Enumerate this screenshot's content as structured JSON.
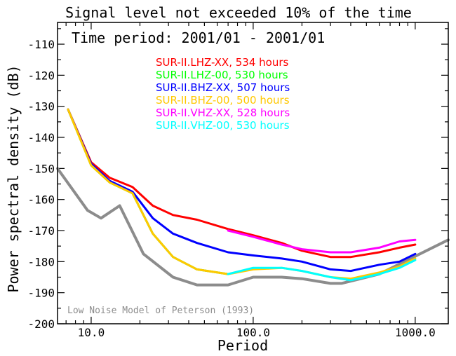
{
  "title": "Signal level not exceeded 10% of the time",
  "subtitle": "Time period: 2001/01 - 2001/01",
  "chart_data": {
    "type": "line",
    "xlabel": "Period",
    "ylabel": "Power spectral density (dB)",
    "xscale": "log",
    "xlim": [
      6.2,
      1600
    ],
    "ylim": [
      -200,
      -103
    ],
    "xticks": [
      10,
      100,
      1000
    ],
    "xtick_labels": [
      "10.0",
      "100.0",
      "1000.0"
    ],
    "yticks": [
      -200,
      -190,
      -180,
      -170,
      -160,
      -150,
      -140,
      -130,
      -120,
      -110
    ],
    "ytick_labels": [
      "-200",
      "-190",
      "-180",
      "-170",
      "-160",
      "-150",
      "-140",
      "-130",
      "-120",
      "-110"
    ],
    "grid": false,
    "legend_position": "top-center",
    "series": [
      {
        "name": "SUR-II.LHZ-XX, 534 hours",
        "color": "#ff0000",
        "x": [
          7.2,
          10,
          13,
          18,
          24,
          32,
          45,
          70,
          100,
          150,
          200,
          300,
          400,
          600,
          800,
          1000
        ],
        "y": [
          -131,
          -148,
          -153,
          -156,
          -162,
          -165,
          -166.5,
          -169.5,
          -171.5,
          -174,
          -176.5,
          -178.5,
          -178.5,
          -177,
          -175.5,
          -174.5
        ]
      },
      {
        "name": "SUR-II.LHZ-00, 530 hours",
        "color": "#00ff00",
        "x": [
          7.2,
          10,
          13,
          18,
          24,
          32,
          45,
          70
        ],
        "y": [
          -131,
          -149,
          -154.5,
          -158,
          -171,
          -178.5,
          -182.5,
          -184
        ]
      },
      {
        "name": "SUR-II.BHZ-XX, 507 hours",
        "color": "#0000ff",
        "x": [
          7.2,
          10,
          13,
          18,
          24,
          32,
          45,
          70,
          100,
          150,
          200,
          300,
          400,
          600,
          800,
          1000
        ],
        "y": [
          -131,
          -148.5,
          -154,
          -157.5,
          -166,
          -171,
          -174,
          -177,
          -178,
          -179,
          -180,
          -182.5,
          -183,
          -181,
          -180,
          -177.5
        ]
      },
      {
        "name": "SUR-II.BHZ-00, 500 hours",
        "color": "#ffc800",
        "x": [
          7.2,
          10,
          13,
          18,
          24,
          32,
          45,
          70,
          100,
          150,
          200,
          300,
          400,
          600,
          800,
          1000
        ],
        "y": [
          -131,
          -149,
          -154.5,
          -158,
          -171,
          -178.5,
          -182.5,
          -184,
          -182.5,
          -182,
          -183,
          -185,
          -185.5,
          -183.5,
          -181.5,
          -179
        ]
      },
      {
        "name": "SUR-II.VHZ-XX, 528 hours",
        "color": "#ff00ff",
        "x": [
          70,
          100,
          150,
          200,
          300,
          400,
          600,
          800,
          1000
        ],
        "y": [
          -170,
          -172,
          -174.5,
          -176,
          -177,
          -177,
          -175.5,
          -173.5,
          -173
        ]
      },
      {
        "name": "SUR-II.VHZ-00, 530 hours",
        "color": "#00ffff",
        "x": [
          70,
          100,
          150,
          200,
          300,
          400,
          600,
          800,
          1000
        ],
        "y": [
          -184,
          -182,
          -182,
          -183,
          -185,
          -186,
          -184,
          -182,
          -179.5
        ]
      }
    ],
    "reference": {
      "name": "Low Noise Model of Peterson (1993)",
      "color": "#8c8c8c",
      "x": [
        6.2,
        9.5,
        11.5,
        15,
        21,
        32,
        45,
        70,
        100,
        150,
        200,
        300,
        350,
        600,
        1600
      ],
      "y": [
        -150,
        -163.5,
        -166,
        -162,
        -177.5,
        -185,
        -187.5,
        -187.5,
        -185,
        -185,
        -185.5,
        -187,
        -187,
        -184,
        -173
      ]
    }
  }
}
